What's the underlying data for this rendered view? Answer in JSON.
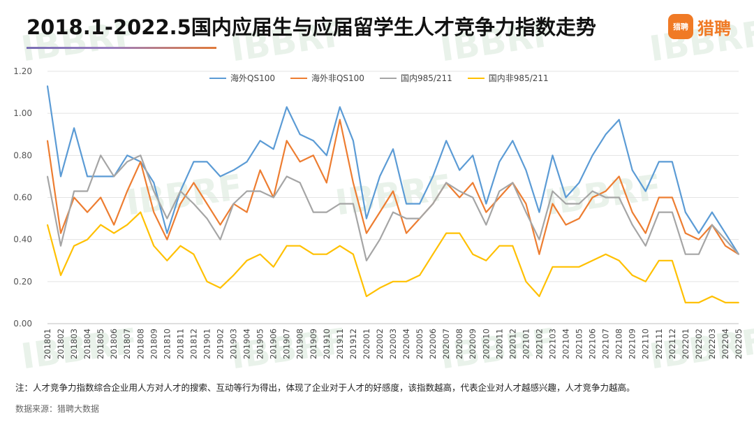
{
  "title": "2018.1-2022.5国内应届生与应届留学生人才竞争力指数走势",
  "logo": {
    "mark": "猎聘",
    "text": "猎聘"
  },
  "watermark": "IBBRF",
  "note": "注：人才竞争力指数综合企业用人方对人才的搜索、互动等行为得出，体现了企业对于人才的好感度，该指数越高，代表企业对人才越感兴趣，人才竞争力越高。",
  "source": "数据来源：猎聘大数据",
  "chart_data": {
    "type": "line",
    "title": "2018.1-2022.5国内应届生与应届留学生人才竞争力指数走势",
    "xlabel": "",
    "ylabel": "",
    "ylim": [
      0,
      1.2
    ],
    "yticks": [
      "0.00",
      "0.20",
      "0.40",
      "0.60",
      "0.80",
      "1.00",
      "1.20"
    ],
    "grid": true,
    "legend_position": "top",
    "categories": [
      "201801",
      "201802",
      "201803",
      "201804",
      "201805",
      "201806",
      "201807",
      "201808",
      "201809",
      "201810",
      "201811",
      "201812",
      "201901",
      "201902",
      "201903",
      "201904",
      "201905",
      "201906",
      "201907",
      "201908",
      "201909",
      "201910",
      "201911",
      "201912",
      "202001",
      "202002",
      "202003",
      "202004",
      "202005",
      "202006",
      "202007",
      "202008",
      "202009",
      "202010",
      "202011",
      "202012",
      "202101",
      "202102",
      "202103",
      "202104",
      "202105",
      "202106",
      "202107",
      "202108",
      "202109",
      "202110",
      "202111",
      "202112",
      "202201",
      "202202",
      "202203",
      "202204",
      "202205"
    ],
    "series": [
      {
        "name": "海外QS100",
        "color": "#5b9bd5",
        "values": [
          1.13,
          0.7,
          0.93,
          0.7,
          0.7,
          0.7,
          0.8,
          0.77,
          0.67,
          0.43,
          0.63,
          0.77,
          0.77,
          0.7,
          0.73,
          0.77,
          0.87,
          0.83,
          1.03,
          0.9,
          0.87,
          0.8,
          1.03,
          0.87,
          0.5,
          0.7,
          0.83,
          0.57,
          0.57,
          0.7,
          0.87,
          0.73,
          0.8,
          0.57,
          0.77,
          0.87,
          0.73,
          0.53,
          0.8,
          0.6,
          0.67,
          0.8,
          0.9,
          0.97,
          0.73,
          0.63,
          0.77,
          0.77,
          0.53,
          0.43,
          0.53,
          0.43,
          0.33
        ]
      },
      {
        "name": "海外非QS100",
        "color": "#ed7d31",
        "values": [
          0.87,
          0.43,
          0.6,
          0.53,
          0.6,
          0.47,
          0.63,
          0.77,
          0.53,
          0.4,
          0.57,
          0.67,
          0.57,
          0.47,
          0.57,
          0.53,
          0.73,
          0.6,
          0.87,
          0.77,
          0.8,
          0.67,
          0.97,
          0.67,
          0.43,
          0.53,
          0.63,
          0.43,
          0.5,
          0.57,
          0.67,
          0.6,
          0.67,
          0.53,
          0.6,
          0.67,
          0.57,
          0.33,
          0.57,
          0.47,
          0.5,
          0.6,
          0.63,
          0.7,
          0.53,
          0.43,
          0.6,
          0.6,
          0.43,
          0.4,
          0.47,
          0.37,
          0.33
        ]
      },
      {
        "name": "国内985/211",
        "color": "#a5a5a5",
        "values": [
          0.7,
          0.37,
          0.63,
          0.63,
          0.8,
          0.7,
          0.77,
          0.8,
          0.63,
          0.5,
          0.63,
          0.57,
          0.5,
          0.4,
          0.57,
          0.63,
          0.63,
          0.6,
          0.7,
          0.67,
          0.53,
          0.53,
          0.57,
          0.57,
          0.3,
          0.4,
          0.53,
          0.5,
          0.5,
          0.57,
          0.67,
          0.63,
          0.6,
          0.47,
          0.63,
          0.67,
          0.53,
          0.4,
          0.63,
          0.57,
          0.57,
          0.63,
          0.6,
          0.6,
          0.47,
          0.37,
          0.53,
          0.53,
          0.33,
          0.33,
          0.47,
          0.4,
          0.33
        ]
      },
      {
        "name": "国内非985/211",
        "color": "#ffc000",
        "values": [
          0.47,
          0.23,
          0.37,
          0.4,
          0.47,
          0.43,
          0.47,
          0.53,
          0.37,
          0.3,
          0.37,
          0.33,
          0.2,
          0.17,
          0.23,
          0.3,
          0.33,
          0.27,
          0.37,
          0.37,
          0.33,
          0.33,
          0.37,
          0.33,
          0.13,
          0.17,
          0.2,
          0.2,
          0.23,
          0.33,
          0.43,
          0.43,
          0.33,
          0.3,
          0.37,
          0.37,
          0.2,
          0.13,
          0.27,
          0.27,
          0.27,
          0.3,
          0.33,
          0.3,
          0.23,
          0.2,
          0.3,
          0.3,
          0.1,
          0.1,
          0.13,
          0.1,
          0.1
        ]
      }
    ]
  }
}
